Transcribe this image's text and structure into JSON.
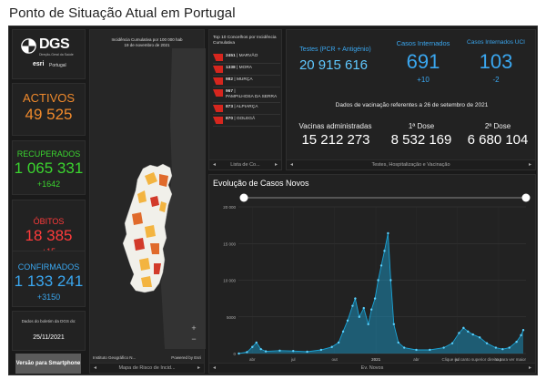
{
  "page_title": "Ponto de Situação Atual em Portugal",
  "logo": {
    "brand": "DGS",
    "subtitle": "Direção-Geral da Saúde",
    "partner": "esri",
    "partner_region": "Portugal"
  },
  "stats": {
    "activos": {
      "label": "ACTIVOS",
      "value": "49 525"
    },
    "recuperados": {
      "label": "RECUPERADOS",
      "value": "1 065 331",
      "delta": "+1642"
    },
    "obitos": {
      "label": "ÓBITOS",
      "value": "18 385",
      "delta": "+15"
    },
    "confirmados": {
      "label": "CONFIRMADOS",
      "value": "1 133 241",
      "delta": "+3150"
    }
  },
  "bulletin": {
    "label": "Dados do boletim da DGS do:",
    "date": "25/11/2021"
  },
  "smartphone_button": "Versão para Smartphone",
  "map": {
    "title": "Incidência Cumulativa por 100 000 hab",
    "date": "19 de novembro de 2021",
    "credit_left": "Instituto Geográfico N...",
    "credit_right": "Powered by Esri",
    "footer": "Mapa de Risco de Incid...",
    "zoom_in": "+",
    "zoom_out": "−",
    "home": "⌂"
  },
  "top10": {
    "title": "Top 10 Concelhos por Incidência Cumulativa",
    "items": [
      {
        "value": "2451",
        "name": "MARVÃO"
      },
      {
        "value": "1338",
        "name": "MORA"
      },
      {
        "value": "982",
        "name": "MURÇA"
      },
      {
        "value": "967",
        "name": "PAMPILHOSA DA SERRA"
      },
      {
        "value": "873",
        "name": "ALPIARÇA"
      },
      {
        "value": "870",
        "name": "GOLEGÃ"
      }
    ],
    "footer": "Lista de Co..."
  },
  "kpi": {
    "testes_label": "Testes (PCR + Antigénio)",
    "testes_value": "20 915 616",
    "internados_label": "Casos Internados",
    "internados_value": "691",
    "internados_delta": "+10",
    "uci_label": "Casos Internados UCI",
    "uci_value": "103",
    "uci_delta": "-2",
    "vacinacao_note": "Dados de vacinação referentes a 26 de setembro de 2021",
    "vacinas_label": "Vacinas administradas",
    "vacinas_value": "15 212 273",
    "dose1_label": "1ª Dose",
    "dose1_value": "8 532 169",
    "dose2_label": "2ª Dose",
    "dose2_value": "6 680 104",
    "footer": "Testes, Hospitalização e Vacinação"
  },
  "chart": {
    "title": "Evolução de Casos Novos",
    "hint": "Clique no canto superior direito para ver maior",
    "footer": "Ev. Novos"
  },
  "colors": {
    "orange": "#f08a2c",
    "green": "#3bd42f",
    "red": "#ff3b3b",
    "blue": "#3aa7f0",
    "chart_line": "#1aa3d6"
  },
  "chart_data": {
    "type": "area",
    "title": "Evolução de Casos Novos",
    "x_tick_labels": [
      "abr",
      "jul",
      "out",
      "2021",
      "abr",
      "jul",
      "out"
    ],
    "y_tick_labels": [
      "0",
      "5000",
      "10 000",
      "15 000",
      "20 000"
    ],
    "ylim": [
      0,
      20000
    ],
    "series": [
      {
        "values": [
          {
            "x": "2020-03-02",
            "y": 0
          },
          {
            "x": "2020-03-20",
            "y": 200
          },
          {
            "x": "2020-04-01",
            "y": 900
          },
          {
            "x": "2020-04-10",
            "y": 1500
          },
          {
            "x": "2020-04-20",
            "y": 600
          },
          {
            "x": "2020-05-01",
            "y": 300
          },
          {
            "x": "2020-06-01",
            "y": 400
          },
          {
            "x": "2020-07-01",
            "y": 350
          },
          {
            "x": "2020-08-01",
            "y": 250
          },
          {
            "x": "2020-09-01",
            "y": 500
          },
          {
            "x": "2020-09-25",
            "y": 900
          },
          {
            "x": "2020-10-10",
            "y": 1500
          },
          {
            "x": "2020-10-20",
            "y": 3000
          },
          {
            "x": "2020-10-30",
            "y": 4500
          },
          {
            "x": "2020-11-10",
            "y": 6500
          },
          {
            "x": "2020-11-16",
            "y": 7500
          },
          {
            "x": "2020-11-25",
            "y": 5000
          },
          {
            "x": "2020-12-05",
            "y": 6200
          },
          {
            "x": "2020-12-15",
            "y": 4000
          },
          {
            "x": "2020-12-22",
            "y": 6000
          },
          {
            "x": "2020-12-30",
            "y": 7500
          },
          {
            "x": "2021-01-06",
            "y": 10000
          },
          {
            "x": "2021-01-13",
            "y": 12000
          },
          {
            "x": "2021-01-20",
            "y": 14000
          },
          {
            "x": "2021-01-28",
            "y": 16400
          },
          {
            "x": "2021-02-03",
            "y": 10000
          },
          {
            "x": "2021-02-10",
            "y": 4000
          },
          {
            "x": "2021-02-20",
            "y": 1500
          },
          {
            "x": "2021-03-05",
            "y": 800
          },
          {
            "x": "2021-04-01",
            "y": 500
          },
          {
            "x": "2021-05-01",
            "y": 500
          },
          {
            "x": "2021-06-01",
            "y": 800
          },
          {
            "x": "2021-06-20",
            "y": 1400
          },
          {
            "x": "2021-07-05",
            "y": 2800
          },
          {
            "x": "2021-07-15",
            "y": 3500
          },
          {
            "x": "2021-07-25",
            "y": 3000
          },
          {
            "x": "2021-08-05",
            "y": 2600
          },
          {
            "x": "2021-08-20",
            "y": 2200
          },
          {
            "x": "2021-09-05",
            "y": 1400
          },
          {
            "x": "2021-09-25",
            "y": 800
          },
          {
            "x": "2021-10-10",
            "y": 600
          },
          {
            "x": "2021-10-25",
            "y": 800
          },
          {
            "x": "2021-11-10",
            "y": 1600
          },
          {
            "x": "2021-11-20",
            "y": 2500
          },
          {
            "x": "2021-11-25",
            "y": 3200
          }
        ]
      }
    ],
    "grid": true
  }
}
